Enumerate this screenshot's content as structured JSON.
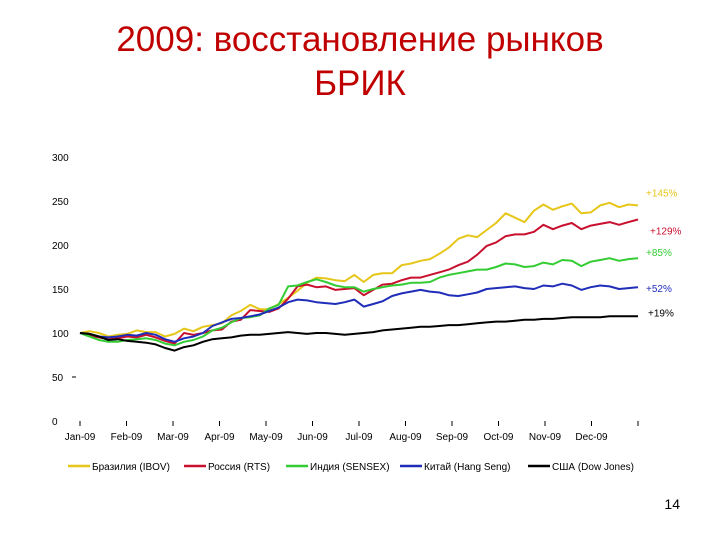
{
  "slide": {
    "title_line1": "2009: восстановление рынков",
    "title_line2": "БРИК",
    "page_number": "14"
  },
  "chart_data": {
    "type": "line",
    "title": "",
    "xlabel": "",
    "ylabel": "",
    "ylim": [
      0,
      300
    ],
    "y_ticks": [
      0,
      50,
      100,
      150,
      200,
      250,
      300
    ],
    "x_tick_labels": [
      "Jan-09",
      "Feb-09",
      "Mar-09",
      "Apr-09",
      "May-09",
      "Jun-09",
      "Jul-09",
      "Aug-09",
      "Sep-09",
      "Oct-09",
      "Nov-09",
      "Dec-09"
    ],
    "legend_position": "bottom",
    "grid": false,
    "series": [
      {
        "name": "Бразилия (IBOV)",
        "color": "#e6c619",
        "end_label": "+145%",
        "values": [
          100,
          102,
          100,
          96,
          98,
          99,
          103,
          101,
          101,
          96,
          99,
          105,
          102,
          107,
          109,
          111,
          120,
          125,
          132,
          127,
          127,
          133,
          140,
          148,
          157,
          163,
          162,
          160,
          159,
          166,
          158,
          166,
          168,
          168,
          177,
          179,
          182,
          184,
          190,
          197,
          207,
          211,
          209,
          217,
          225,
          236,
          231,
          226,
          239,
          246,
          240,
          244,
          247,
          236,
          237,
          245,
          248,
          243,
          246,
          245
        ]
      },
      {
        "name": "Россия (RTS)",
        "color": "#c8102e",
        "end_label": "+129%",
        "values": [
          100,
          97,
          95,
          93,
          94,
          96,
          95,
          98,
          95,
          91,
          88,
          100,
          98,
          100,
          103,
          104,
          113,
          115,
          126,
          125,
          124,
          128,
          139,
          153,
          155,
          152,
          153,
          149,
          150,
          151,
          143,
          149,
          155,
          156,
          160,
          163,
          163,
          166,
          169,
          172,
          177,
          181,
          189,
          199,
          203,
          210,
          212,
          212,
          215,
          223,
          218,
          222,
          225,
          218,
          222,
          224,
          226,
          223,
          226,
          229
        ]
      },
      {
        "name": "Индия (SENSEX)",
        "color": "#33cc33",
        "end_label": "+85%",
        "values": [
          100,
          96,
          92,
          90,
          90,
          92,
          93,
          94,
          92,
          88,
          86,
          90,
          92,
          96,
          103,
          106,
          112,
          117,
          118,
          120,
          128,
          132,
          153,
          154,
          158,
          161,
          158,
          154,
          152,
          152,
          147,
          150,
          152,
          154,
          155,
          157,
          157,
          158,
          163,
          166,
          168,
          170,
          172,
          172,
          175,
          179,
          178,
          175,
          176,
          180,
          178,
          183,
          182,
          176,
          181,
          183,
          185,
          182,
          184,
          185
        ]
      },
      {
        "name": "Китай (Hang Seng)",
        "color": "#1f2db8",
        "end_label": "+52%",
        "values": [
          100,
          99,
          96,
          95,
          96,
          98,
          97,
          100,
          98,
          93,
          90,
          94,
          96,
          100,
          108,
          112,
          116,
          117,
          119,
          121,
          125,
          129,
          135,
          138,
          137,
          135,
          134,
          133,
          135,
          138,
          130,
          133,
          136,
          142,
          145,
          147,
          149,
          147,
          146,
          143,
          142,
          144,
          146,
          150,
          151,
          152,
          153,
          151,
          150,
          154,
          153,
          156,
          154,
          149,
          152,
          154,
          153,
          150,
          151,
          152
        ]
      },
      {
        "name": "США (Dow Jones)",
        "color": "#000000",
        "end_label": "+19%",
        "values": [
          100,
          99,
          96,
          92,
          93,
          91,
          90,
          89,
          87,
          83,
          80,
          84,
          86,
          90,
          93,
          94,
          95,
          97,
          98,
          98,
          99,
          100,
          101,
          100,
          99,
          100,
          100,
          99,
          98,
          99,
          100,
          101,
          103,
          104,
          105,
          106,
          107,
          107,
          108,
          109,
          109,
          110,
          111,
          112,
          113,
          113,
          114,
          115,
          115,
          116,
          116,
          117,
          118,
          118,
          118,
          118,
          119,
          119,
          119,
          119
        ]
      }
    ]
  }
}
